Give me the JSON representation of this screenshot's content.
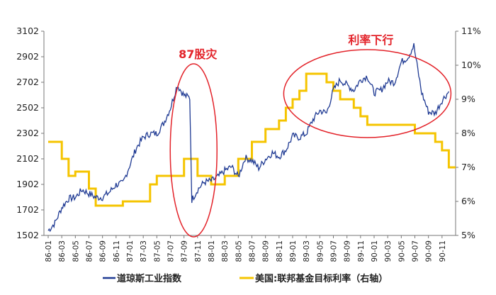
{
  "chart_data": {
    "type": "line",
    "title": "",
    "x_categories": [
      "86-01",
      "86-03",
      "86-05",
      "86-07",
      "86-09",
      "86-11",
      "87-01",
      "87-03",
      "87-05",
      "87-07",
      "87-09",
      "87-11",
      "88-01",
      "88-03",
      "88-05",
      "88-07",
      "88-09",
      "88-11",
      "89-01",
      "89-03",
      "89-05",
      "89-07",
      "89-09",
      "89-11",
      "90-01",
      "90-03",
      "90-05",
      "90-07",
      "90-09",
      "90-11"
    ],
    "left_axis": {
      "min": 1502,
      "max": 3102,
      "ticks": [
        "3102",
        "2902",
        "2702",
        "2502",
        "2302",
        "2102",
        "1902",
        "1702",
        "1502"
      ]
    },
    "right_axis": {
      "min": 5,
      "max": 11,
      "ticks": [
        "11%",
        "10%",
        "9%",
        "8%",
        "7%",
        "6%",
        "5%"
      ]
    },
    "series": [
      {
        "name": "道琼斯工业指数",
        "axis": "left",
        "color": "#1f3a93",
        "points": [
          [
            "86-01",
            1540
          ],
          [
            "86-02",
            1600
          ],
          [
            "86-03",
            1720
          ],
          [
            "86-04",
            1790
          ],
          [
            "86-05",
            1800
          ],
          [
            "86-06",
            1860
          ],
          [
            "86-07",
            1830
          ],
          [
            "86-08",
            1800
          ],
          [
            "86-09",
            1800
          ],
          [
            "86-10",
            1840
          ],
          [
            "86-11",
            1900
          ],
          [
            "86-12",
            1910
          ],
          [
            "87-01",
            2050
          ],
          [
            "87-02",
            2190
          ],
          [
            "87-03",
            2270
          ],
          [
            "87-04",
            2300
          ],
          [
            "87-05",
            2300
          ],
          [
            "87-06",
            2380
          ],
          [
            "87-07",
            2500
          ],
          [
            "87-08",
            2680
          ],
          [
            "87-09",
            2600
          ],
          [
            "87-10a",
            2580
          ],
          [
            "87-10b",
            1780
          ],
          [
            "87-11",
            1860
          ],
          [
            "87-12",
            1920
          ],
          [
            "88-01",
            1930
          ],
          [
            "88-02",
            1960
          ],
          [
            "88-03",
            2010
          ],
          [
            "88-04",
            2040
          ],
          [
            "88-05",
            1960
          ],
          [
            "88-06",
            2110
          ],
          [
            "88-07",
            2090
          ],
          [
            "88-08",
            2030
          ],
          [
            "88-09",
            2100
          ],
          [
            "88-10",
            2150
          ],
          [
            "88-11",
            2120
          ],
          [
            "88-12",
            2170
          ],
          [
            "89-01",
            2280
          ],
          [
            "89-02",
            2270
          ],
          [
            "89-03",
            2300
          ],
          [
            "89-04",
            2410
          ],
          [
            "89-05",
            2480
          ],
          [
            "89-06",
            2460
          ],
          [
            "89-07",
            2640
          ],
          [
            "89-08",
            2720
          ],
          [
            "89-09",
            2680
          ],
          [
            "89-10",
            2640
          ],
          [
            "89-11",
            2720
          ],
          [
            "89-12",
            2750
          ],
          [
            "90-01",
            2620
          ],
          [
            "90-02",
            2640
          ],
          [
            "90-03",
            2710
          ],
          [
            "90-04",
            2700
          ],
          [
            "90-05",
            2860
          ],
          [
            "90-06",
            2900
          ],
          [
            "90-07a",
            2990
          ],
          [
            "90-07b",
            2890
          ],
          [
            "90-08",
            2620
          ],
          [
            "90-09",
            2470
          ],
          [
            "90-10",
            2460
          ],
          [
            "90-11",
            2560
          ],
          [
            "90-12",
            2630
          ]
        ]
      },
      {
        "name": "美国:联邦基金目标利率（右轴）",
        "axis": "right",
        "color": "#f5c400",
        "points": [
          [
            "86-01",
            7.75
          ],
          [
            "86-03",
            7.25
          ],
          [
            "86-04",
            6.75
          ],
          [
            "86-05",
            6.875
          ],
          [
            "86-07",
            6.375
          ],
          [
            "86-08",
            5.875
          ],
          [
            "86-12",
            6.0
          ],
          [
            "87-04",
            6.5
          ],
          [
            "87-05",
            6.75
          ],
          [
            "87-09",
            7.25
          ],
          [
            "87-11",
            6.75
          ],
          [
            "88-01",
            6.5
          ],
          [
            "88-03",
            6.75
          ],
          [
            "88-05",
            7.25
          ],
          [
            "88-07",
            7.75
          ],
          [
            "88-09",
            8.125
          ],
          [
            "88-11",
            8.375
          ],
          [
            "88-12",
            8.75
          ],
          [
            "89-01",
            9.0
          ],
          [
            "89-02",
            9.25
          ],
          [
            "89-03",
            9.75
          ],
          [
            "89-06",
            9.5
          ],
          [
            "89-07",
            9.25
          ],
          [
            "89-08",
            9.0
          ],
          [
            "89-10",
            8.75
          ],
          [
            "89-11",
            8.5
          ],
          [
            "89-12",
            8.25
          ],
          [
            "90-07",
            8.0
          ],
          [
            "90-10",
            7.75
          ],
          [
            "90-11",
            7.5
          ],
          [
            "90-12",
            7.0
          ]
        ]
      }
    ],
    "annotations": [
      {
        "label": "87股灾",
        "near": "87-10"
      },
      {
        "label": "利率下行",
        "near": "89-05 to 90-07"
      }
    ],
    "legend_position": "bottom-center"
  }
}
